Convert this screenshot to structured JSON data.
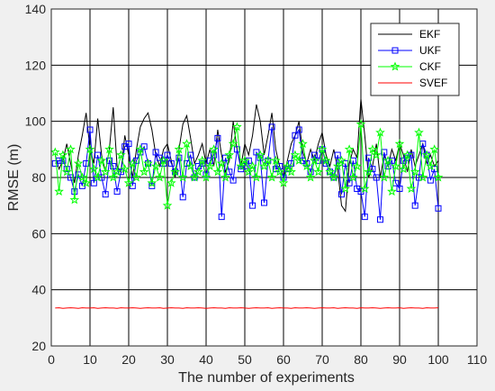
{
  "chart_data": {
    "type": "line",
    "xlabel": "The number of experiments",
    "ylabel": "RMSE (m)",
    "xlim": [
      0,
      110
    ],
    "ylim": [
      20,
      140
    ],
    "xticks": [
      0,
      10,
      20,
      30,
      40,
      50,
      60,
      70,
      80,
      90,
      100,
      110
    ],
    "yticks": [
      20,
      40,
      60,
      80,
      100,
      120,
      140
    ],
    "grid": true,
    "legend_position": "top-right",
    "x": [
      1,
      2,
      3,
      4,
      5,
      6,
      7,
      8,
      9,
      10,
      11,
      12,
      13,
      14,
      15,
      16,
      17,
      18,
      19,
      20,
      21,
      22,
      23,
      24,
      25,
      26,
      27,
      28,
      29,
      30,
      31,
      32,
      33,
      34,
      35,
      36,
      37,
      38,
      39,
      40,
      41,
      42,
      43,
      44,
      45,
      46,
      47,
      48,
      49,
      50,
      51,
      52,
      53,
      54,
      55,
      56,
      57,
      58,
      59,
      60,
      61,
      62,
      63,
      64,
      65,
      66,
      67,
      68,
      69,
      70,
      71,
      72,
      73,
      74,
      75,
      76,
      77,
      78,
      79,
      80,
      81,
      82,
      83,
      84,
      85,
      86,
      87,
      88,
      89,
      90,
      91,
      92,
      93,
      94,
      95,
      96,
      97,
      98,
      99,
      100
    ],
    "series": [
      {
        "name": "EKF",
        "color": "#000000",
        "marker": "none",
        "values": [
          88,
          83,
          86,
          92,
          85,
          78,
          88,
          95,
          103,
          90,
          85,
          101,
          88,
          82,
          90,
          105,
          84,
          82,
          95,
          88,
          80,
          90,
          98,
          101,
          103,
          97,
          88,
          84,
          90,
          92,
          86,
          80,
          90,
          99,
          102,
          94,
          85,
          88,
          92,
          85,
          90,
          84,
          97,
          88,
          82,
          86,
          100,
          90,
          84,
          92,
          88,
          95,
          106,
          100,
          88,
          95,
          103,
          90,
          84,
          80,
          86,
          92,
          95,
          100,
          89,
          85,
          90,
          86,
          92,
          96,
          88,
          84,
          90,
          83,
          70,
          68,
          85,
          90,
          87,
          108,
          95,
          80,
          84,
          92,
          80,
          88,
          84,
          90,
          86,
          92,
          88,
          82,
          90,
          84,
          88,
          92,
          85,
          88,
          84,
          86
        ]
      },
      {
        "name": "UKF",
        "color": "#0000ff",
        "marker": "square",
        "values": [
          85,
          86,
          86,
          83,
          80,
          75,
          81,
          77,
          85,
          97,
          78,
          88,
          80,
          74,
          86,
          84,
          75,
          82,
          91,
          92,
          77,
          86,
          89,
          91,
          85,
          77,
          89,
          87,
          85,
          88,
          85,
          82,
          87,
          73,
          85,
          88,
          80,
          84,
          85,
          81,
          86,
          88,
          94,
          66,
          87,
          82,
          79,
          90,
          83,
          84,
          86,
          70,
          89,
          87,
          71,
          86,
          98,
          83,
          84,
          80,
          83,
          85,
          95,
          97,
          86,
          85,
          82,
          88,
          86,
          90,
          85,
          82,
          80,
          88,
          74,
          85,
          78,
          86,
          76,
          75,
          66,
          87,
          83,
          80,
          65,
          89,
          84,
          86,
          78,
          76,
          86,
          87,
          88,
          70,
          80,
          92,
          88,
          79,
          83,
          69
        ]
      },
      {
        "name": "CKF",
        "color": "#00ff00",
        "marker": "star",
        "values": [
          89,
          75,
          88,
          82,
          90,
          72,
          85,
          80,
          78,
          90,
          83,
          80,
          86,
          82,
          90,
          80,
          82,
          88,
          83,
          78,
          85,
          80,
          90,
          82,
          85,
          78,
          84,
          80,
          86,
          70,
          78,
          82,
          90,
          80,
          92,
          84,
          80,
          82,
          86,
          80,
          84,
          90,
          82,
          85,
          80,
          88,
          92,
          98,
          84,
          86,
          82,
          84,
          80,
          88,
          84,
          86,
          80,
          86,
          82,
          78,
          84,
          82,
          88,
          86,
          92,
          84,
          80,
          86,
          82,
          90,
          86,
          82,
          80,
          84,
          86,
          76,
          90,
          80,
          84,
          99,
          76,
          82,
          90,
          88,
          96,
          80,
          86,
          75,
          84,
          92,
          83,
          88,
          76,
          82,
          96,
          80,
          88,
          84,
          90,
          80
        ]
      },
      {
        "name": "SVEF",
        "color": "#ff0000",
        "marker": "none",
        "values": [
          33.5,
          33.6,
          33.4,
          33.5,
          33.6,
          33.5,
          33.4,
          33.6,
          33.5,
          33.5,
          33.6,
          33.4,
          33.5,
          33.6,
          33.5,
          33.5,
          33.4,
          33.6,
          33.5,
          33.5,
          33.6,
          33.5,
          33.4,
          33.5,
          33.6,
          33.5,
          33.5,
          33.6,
          33.4,
          33.5,
          33.6,
          33.5,
          33.5,
          33.4,
          33.6,
          33.5,
          33.5,
          33.6,
          33.5,
          33.4,
          33.5,
          33.6,
          33.5,
          33.5,
          33.4,
          33.6,
          33.5,
          33.5,
          33.6,
          33.5,
          33.4,
          33.5,
          33.6,
          33.5,
          33.5,
          33.6,
          33.4,
          33.5,
          33.6,
          33.5,
          33.5,
          33.4,
          33.6,
          33.5,
          33.5,
          33.6,
          33.5,
          33.4,
          33.5,
          33.6,
          33.5,
          33.5,
          33.6,
          33.4,
          33.5,
          33.6,
          33.5,
          33.5,
          33.4,
          33.6,
          33.5,
          33.5,
          33.6,
          33.5,
          33.4,
          33.5,
          33.6,
          33.5,
          33.5,
          33.6,
          33.4,
          33.5,
          33.6,
          33.5,
          33.5,
          33.4,
          33.6,
          33.5,
          33.5,
          33.6
        ]
      }
    ]
  }
}
